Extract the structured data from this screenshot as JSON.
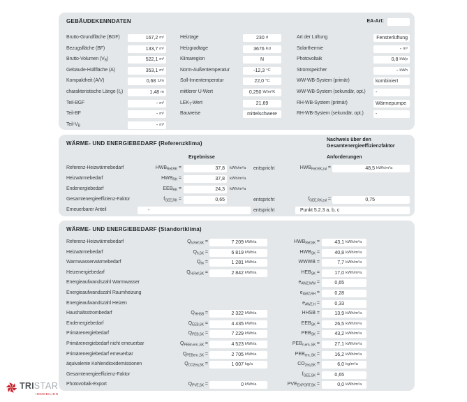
{
  "gebaeudekenndaten": {
    "title": "GEBÄUDEKENNDATEN",
    "ea_art": {
      "label": "EA-Art:",
      "value": ""
    },
    "left": [
      {
        "label": "Brutto-Grundfläche (BGF)",
        "value": "167,2",
        "unit": "m²"
      },
      {
        "label": "Bezugsfläche (BF)",
        "value": "133,7",
        "unit": "m²"
      },
      {
        "label": "Brutto-Volumen (V~B~)",
        "value": "522,1",
        "unit": "m³"
      },
      {
        "label": "Gebäude-Hüllfläche (A)",
        "value": "353,1",
        "unit": "m²"
      },
      {
        "label": "Kompaktheit (A/V)",
        "value": "0,68",
        "unit": "1/m"
      },
      {
        "label": "charakteristische Länge (ℓ~c~)",
        "value": "1,48",
        "unit": "m"
      },
      {
        "label": "Teil-BGF",
        "value": "-",
        "unit": "m²"
      },
      {
        "label": "Teil-BF",
        "value": "-",
        "unit": "m²"
      },
      {
        "label": "Teil-V~B~",
        "value": "-",
        "unit": "m³"
      }
    ],
    "middle": [
      {
        "label": "Heiztage",
        "value": "230",
        "unit": "d"
      },
      {
        "label": "Heizgradtage",
        "value": "3676",
        "unit": "Kd"
      },
      {
        "label": "Klimaregion",
        "value": "N",
        "unit": ""
      },
      {
        "label": "Norm-Außentemperatur",
        "value": "-12,3",
        "unit": "°C"
      },
      {
        "label": "Soll-Innentemperatur",
        "value": "22,0",
        "unit": "°C"
      },
      {
        "label": "mittlerer U-Wert",
        "value": "0,250",
        "unit": "W/m²K"
      },
      {
        "label": "LEK~T~-Wert",
        "value": "21,69",
        "unit": ""
      },
      {
        "label": "Bauweise",
        "value": "mittelschwere",
        "unit": ""
      }
    ],
    "right": [
      {
        "label": "Art der Lüftung",
        "value": "Fensterlüftung",
        "unit": "",
        "align": "right"
      },
      {
        "label": "Solarthermie",
        "value": "-",
        "unit": "m²",
        "align": "right"
      },
      {
        "label": "Photovoltaik",
        "value": "0,8",
        "unit": "kWp",
        "align": "right"
      },
      {
        "label": "Stromspeicher",
        "value": "-",
        "unit": "kWh",
        "align": "right"
      },
      {
        "label": "WW-WB-System (primär)",
        "value": "kombiniert",
        "unit": "",
        "align": "left"
      },
      {
        "label": "WW-WB-System (sekundär, opt.)",
        "value": "-",
        "unit": "",
        "align": "left"
      },
      {
        "label": "RH-WB-System (primär)",
        "value": "Wärmepumpe",
        "unit": "",
        "align": "left"
      },
      {
        "label": "RH-WB-System (sekundär, opt.)",
        "value": "-",
        "unit": "",
        "align": "left"
      }
    ]
  },
  "referenzklima": {
    "title": "WÄRME- UND ENERGIEBEDARF (Referenzklima)",
    "nachweis_line1": "Nachweis über den",
    "nachweis_line2": "Gesamtenergieeffizienzfaktor",
    "header_ergebnisse": "Ergebnisse",
    "header_anforderungen": "Anforderungen",
    "rows": [
      {
        "label": "Referenz-Heizwärmebedarf",
        "sym": "HWB~Ref,RK~ =",
        "value": "37,8",
        "unit": "kWh/m²a",
        "entspricht": "entspricht",
        "rsym": "HWB~Ref,RK,zul~ =",
        "rvalue": "48,5",
        "runit": "kWh/m²a"
      },
      {
        "label": "Heizwärmebedarf",
        "sym": "HWB~RK~ =",
        "value": "37,8",
        "unit": "kWh/m²a"
      },
      {
        "label": "Endenergiebedarf",
        "sym": "EEB~RK~ =",
        "value": "24,3",
        "unit": "kWh/m²a"
      },
      {
        "label": "Gesamtenergieeffizienz-Faktor",
        "sym": "f~GEE,RK~ =",
        "value": "0,65",
        "unit": "",
        "entspricht": "entspricht",
        "rsym": "f~GEE,RK,zul~ =",
        "rvalue": "0,75",
        "runit": ""
      },
      {
        "label": "Erneuerbarer Anteil",
        "wide_value": "-",
        "entspricht": "entspricht",
        "rtext": "Punkt 5.2.3 a, b, c"
      }
    ]
  },
  "standortklima": {
    "title": "WÄRME- UND ENERGIEBEDARF (Standortklima)",
    "rows": [
      {
        "label": "Referenz-Heizwärmebedarf",
        "sym": "Q~h,Ref,SK~ =",
        "value": "7 209",
        "unit": "kWh/a",
        "rsym": "HWB~Ref,SK~ =",
        "rvalue": "43,1",
        "runit": "kWh/m²a"
      },
      {
        "label": "Heizwärmebedarf",
        "sym": "Q~h,SK~ =",
        "value": "6 819",
        "unit": "kWh/a",
        "rsym": "HWB~SK~ =",
        "rvalue": "40,8",
        "runit": "kWh/m²a"
      },
      {
        "label": "Warmwasserwärmebedarf",
        "sym": "Q~tw~ =",
        "value": "1 281",
        "unit": "kWh/a",
        "rsym": "WWWB =",
        "rvalue": "7,7",
        "runit": "kWh/m²a"
      },
      {
        "label": "Heizenergiebedarf",
        "sym": "Q~H,Ref,SK~ =",
        "value": "2 842",
        "unit": "kWh/a",
        "rsym": "HEB~SK~ =",
        "rvalue": "17,0",
        "runit": "kWh/m²a"
      },
      {
        "label": "Energieaufwandszahl Warmwasser",
        "rsym": "e~AWZ,WW~ =",
        "rvalue": "0,65",
        "runit": ""
      },
      {
        "label": "Energieaufwandszahl Raumheizung",
        "rsym": "e~AWZ,RH~ =",
        "rvalue": "0,28",
        "runit": ""
      },
      {
        "label": "Energieaufwandszahl Heizen",
        "rsym": "e~AWZ,H~ =",
        "rvalue": "0,33",
        "runit": ""
      },
      {
        "label": "Haushaltsstrombedarf",
        "sym": "Q~HHSB~ =",
        "value": "2 322",
        "unit": "kWh/a",
        "rsym": "HHSB =",
        "rvalue": "13,9",
        "runit": "kWh/m²a"
      },
      {
        "label": "Endenergiebedarf",
        "sym": "Q~EEB,SK~ =",
        "value": "4 435",
        "unit": "kWh/a",
        "rsym": "EEB~SK~ =",
        "rvalue": "26,5",
        "runit": "kWh/m²a"
      },
      {
        "label": "Primärenergiebedarf",
        "sym": "Q~PEB,SK~ =",
        "value": "7 229",
        "unit": "kWh/a",
        "rsym": "PEB~SK~ =",
        "rvalue": "43,2",
        "runit": "kWh/m²a"
      },
      {
        "label": "Primärenergiebedarf nicht erneuerbar",
        "sym": "Q~PEBn.ern.,SK~ =",
        "value": "4 523",
        "unit": "kWh/a",
        "rsym": "PEB~n.ern.,SK~ =",
        "rvalue": "27,1",
        "runit": "kWh/m²a"
      },
      {
        "label": "Primärenergiebedarf erneuerbar",
        "sym": "Q~PEBern.,SK~ =",
        "value": "2 705",
        "unit": "kWh/a",
        "rsym": "PEB~ern.,SK~ =",
        "rvalue": "16,2",
        "runit": "kWh/m²a"
      },
      {
        "label": "äquivalente Kohlendioxidemissionen",
        "sym": "Q~CO2eq,SK~ =",
        "value": "1 007",
        "unit": "kg/a",
        "rsym": "CO~2eq,SK~ =",
        "rvalue": "6,0",
        "runit": "kg/m²a"
      },
      {
        "label": "Gesamtenergieeffizienz-Faktor",
        "rsym": "f~GEE,SK~ =",
        "rvalue": "0,65",
        "runit": ""
      },
      {
        "label": "Photovoltaik-Export",
        "sym": "Q~PVE,SK~ =",
        "value": "0",
        "unit": "kWh/a",
        "rsym": "PVE~EXPORT,SK~ =",
        "rvalue": "0,0",
        "runit": "kWh/m²a"
      }
    ]
  },
  "logo": {
    "word_bold": "TRI",
    "word_light": "STAR",
    "tagline": "IMMOBILIEN",
    "red": "#c8202a",
    "dark": "#4c5156",
    "gray": "#a8adb2"
  }
}
